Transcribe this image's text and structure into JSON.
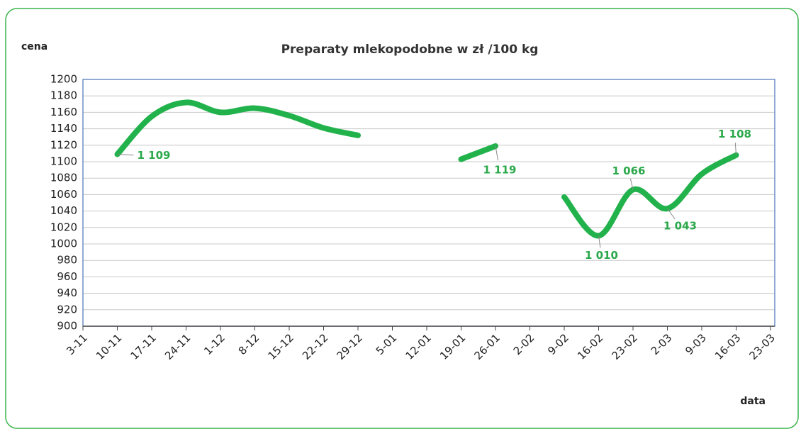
{
  "chart_data": {
    "type": "line",
    "title": "Preparaty mlekopodobne w zł /100 kg",
    "y_label": "cena",
    "x_label": "data",
    "categories": [
      "3-11",
      "10-11",
      "17-11",
      "24-11",
      "1-12",
      "8-12",
      "15-12",
      "22-12",
      "29-12",
      "5-01",
      "12-01",
      "19-01",
      "26-01",
      "2-02",
      "9-02",
      "16-02",
      "23-02",
      "2-03",
      "9-03",
      "16-03",
      "23-03"
    ],
    "series": [
      {
        "name": "Preparaty mlekopodobne",
        "color": "#22b24c",
        "values": [
          null,
          1109,
          1155,
          1172,
          1160,
          1165,
          1156,
          1141,
          1132,
          null,
          null,
          1103,
          1119,
          null,
          1057,
          1010,
          1066,
          1043,
          1085,
          1108,
          null
        ],
        "value_labels": [
          null,
          "1 109",
          null,
          null,
          null,
          null,
          null,
          null,
          null,
          null,
          null,
          null,
          "1 119",
          null,
          null,
          "1 010",
          "1 066",
          "1 043",
          null,
          "1 108",
          null
        ]
      }
    ],
    "ylim": [
      900,
      1200
    ],
    "yticks": [
      900,
      920,
      940,
      960,
      980,
      1000,
      1020,
      1040,
      1060,
      1080,
      1100,
      1120,
      1140,
      1160,
      1180,
      1200
    ],
    "grid": true
  }
}
